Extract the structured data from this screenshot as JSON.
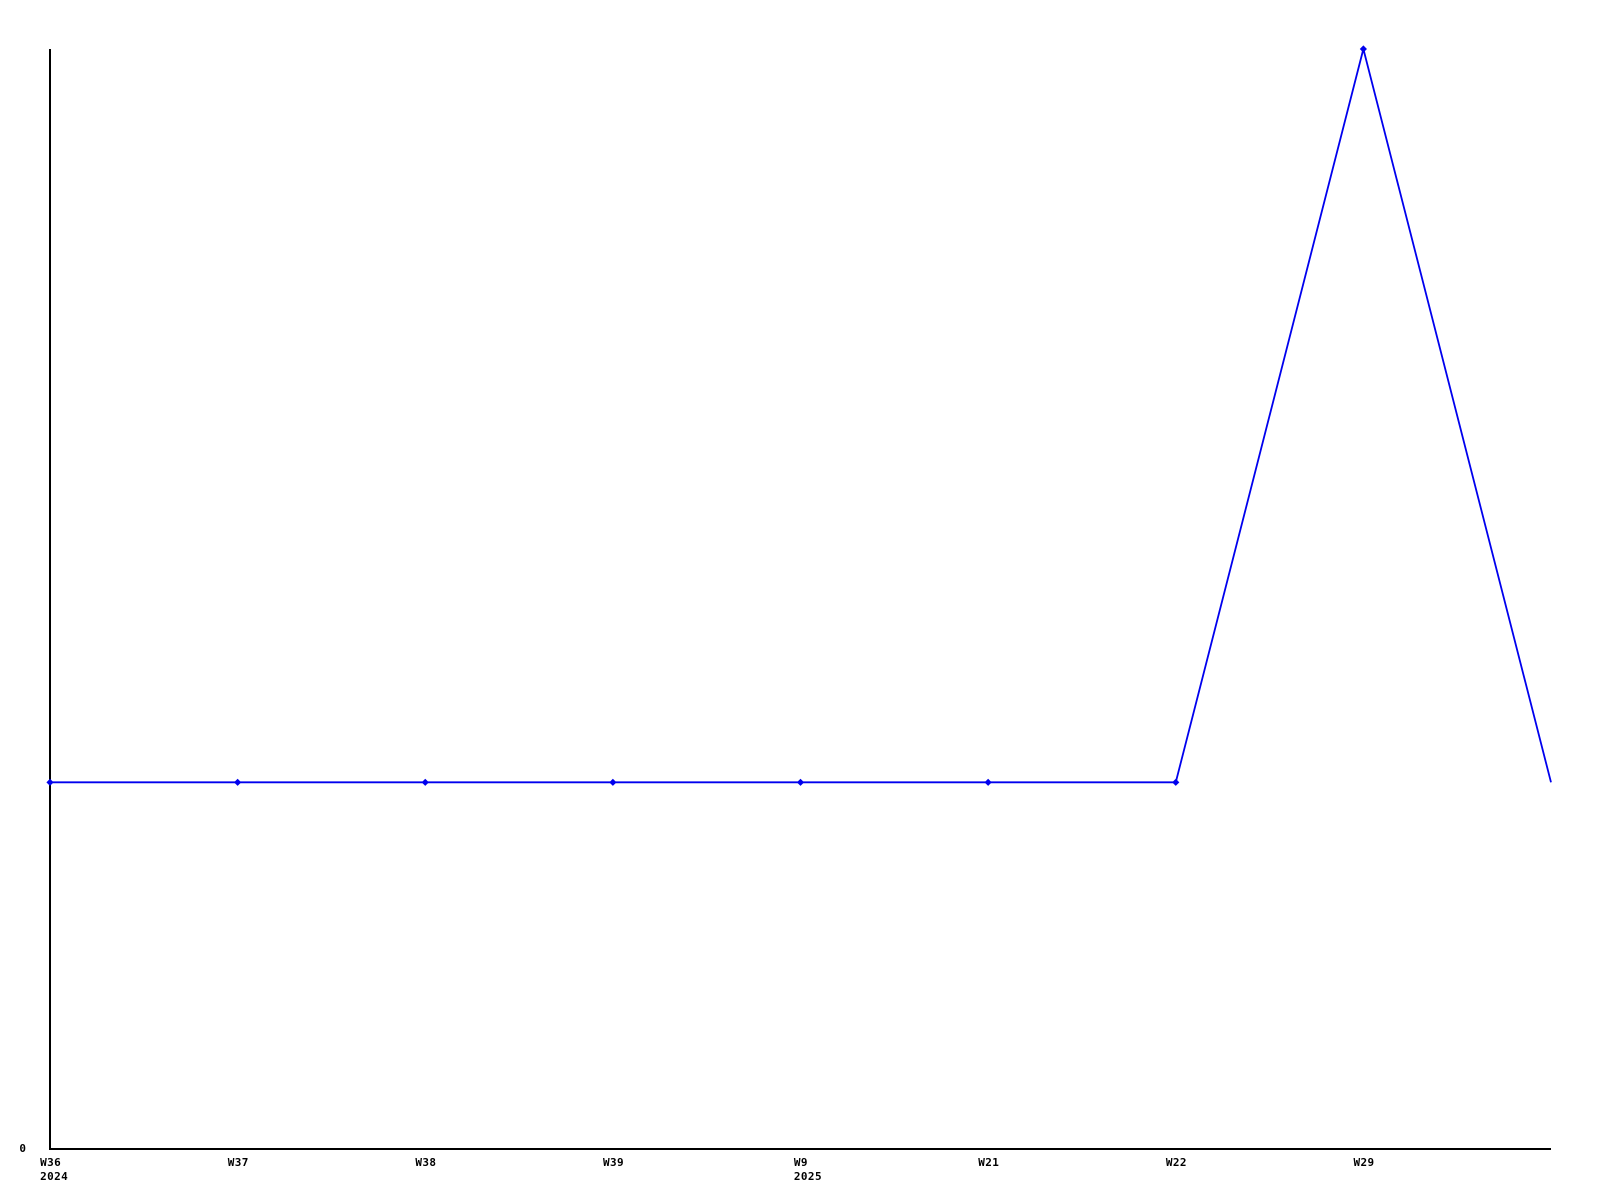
{
  "chart_data": {
    "type": "line",
    "title": "",
    "xlabel": "",
    "ylabel": "",
    "n_points": 9,
    "values": [
      1,
      1,
      1,
      1,
      1,
      1,
      1,
      3,
      1
    ],
    "point_has_marker": [
      true,
      true,
      true,
      true,
      true,
      true,
      true,
      true,
      false
    ],
    "x_tick_labels": [
      "W36",
      "W37",
      "W38",
      "W39",
      "W9",
      "W21",
      "W22",
      "W29"
    ],
    "x_tick_sublabels": [
      "2024",
      "",
      "",
      "",
      "2025",
      "",
      "",
      ""
    ],
    "y_zero_label": "0",
    "ylim": [
      0,
      3
    ],
    "y_ticks_shown": [
      "0"
    ],
    "grid": false,
    "legend": "none",
    "marker": "diamond",
    "line_color": "#0000ee",
    "marker_color": "#0000ee",
    "axis_color": "#000000",
    "background_color": "#ffffff"
  }
}
